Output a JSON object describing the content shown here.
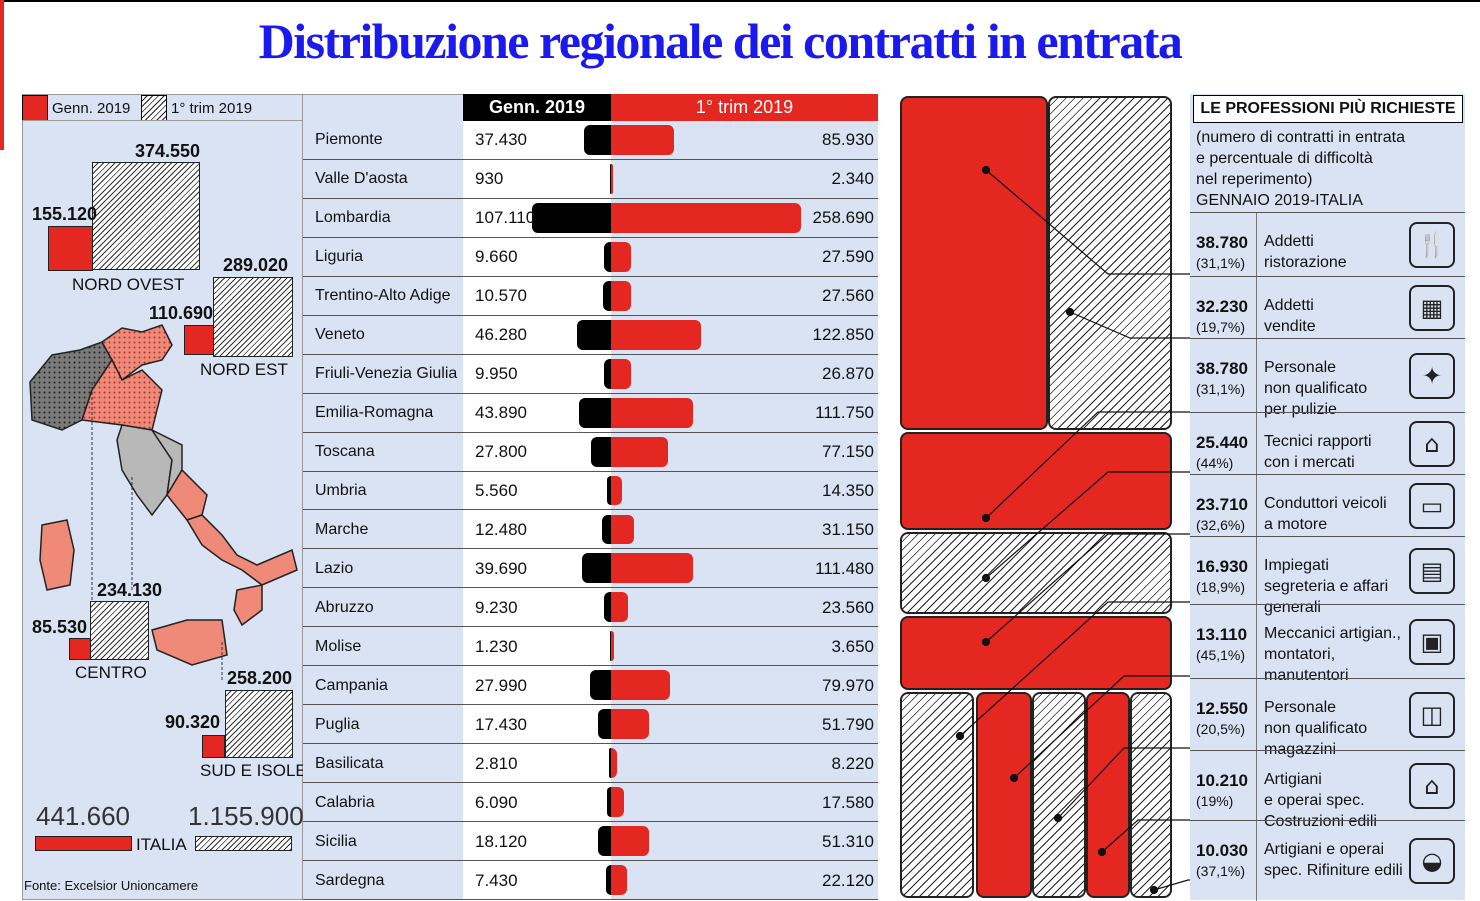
{
  "title": "Distribuzione regionale dei contratti in entrata",
  "legend": {
    "genn": "Genn. 2019",
    "trim": "1° trim 2019"
  },
  "macro_areas": [
    {
      "name": "NORD OVEST",
      "genn": "155.120",
      "trim": "374.550"
    },
    {
      "name": "NORD EST",
      "genn": "110.690",
      "trim": "289.020"
    },
    {
      "name": "CENTRO",
      "genn": "85.530",
      "trim": "234.130"
    },
    {
      "name": "SUD E ISOLE",
      "genn": "90.320",
      "trim": "258.200"
    }
  ],
  "italia": {
    "label": "ITALIA",
    "genn": "441.660",
    "trim": "1.155.900"
  },
  "source": "Fonte: Excelsior Unioncamere",
  "table": {
    "col_genn": "Genn. 2019",
    "col_trim": "1° trim 2019"
  },
  "chart_data": {
    "type": "bar",
    "title": "Distribuzione regionale dei contratti in entrata",
    "categories": [
      "Piemonte",
      "Valle D'aosta",
      "Lombardia",
      "Liguria",
      "Trentino-Alto Adige",
      "Veneto",
      "Friuli-Venezia Giulia",
      "Emilia-Romagna",
      "Toscana",
      "Umbria",
      "Marche",
      "Lazio",
      "Abruzzo",
      "Molise",
      "Campania",
      "Puglia",
      "Basilicata",
      "Calabria",
      "Sicilia",
      "Sardegna"
    ],
    "series": [
      {
        "name": "Genn. 2019",
        "values": [
          37430,
          930,
          107110,
          9660,
          10570,
          46280,
          9950,
          43890,
          27800,
          5560,
          12480,
          39690,
          9230,
          1230,
          27990,
          17430,
          2810,
          6090,
          18120,
          7430
        ],
        "labels": [
          "37.430",
          "930",
          "107.110",
          "9.660",
          "10.570",
          "46.280",
          "9.950",
          "43.890",
          "27.800",
          "5.560",
          "12.480",
          "39.690",
          "9.230",
          "1.230",
          "27.990",
          "17.430",
          "2.810",
          "6.090",
          "18.120",
          "7.430"
        ],
        "color": "#000000"
      },
      {
        "name": "1° trim 2019",
        "values": [
          85930,
          2340,
          258690,
          27590,
          27560,
          122850,
          26870,
          111750,
          77150,
          14350,
          31150,
          111480,
          23560,
          3650,
          79970,
          51790,
          8220,
          17580,
          51310,
          22120
        ],
        "labels": [
          "85.930",
          "2.340",
          "258.690",
          "27.590",
          "27.560",
          "122.850",
          "26.870",
          "111.750",
          "77.150",
          "14.350",
          "31.150",
          "111.480",
          "23.560",
          "3.650",
          "79.970",
          "51.790",
          "8.220",
          "17.580",
          "51.310",
          "22.120"
        ],
        "color": "#e52722"
      }
    ]
  },
  "professions": {
    "title": "LE PROFESSIONI PIÙ RICHIESTE",
    "subtitle_lines": [
      "(numero di contratti in entrata",
      "e percentuale di difficoltà",
      "nel reperimento)",
      "GENNAIO 2019-ITALIA"
    ],
    "items": [
      {
        "value": "38.780",
        "perc": "(31,1%)",
        "label_lines": [
          "Addetti",
          "ristorazione"
        ],
        "icon": "dining-icon"
      },
      {
        "value": "32.230",
        "perc": "(19,7%)",
        "label_lines": [
          "Addetti",
          "vendite"
        ],
        "icon": "cash-register-icon"
      },
      {
        "value": "38.780",
        "perc": "(31,1%)",
        "label_lines": [
          "Personale",
          "non qualificato",
          "per pulizie"
        ],
        "icon": "broom-icon"
      },
      {
        "value": "25.440",
        "perc": "(44%)",
        "label_lines": [
          "Tecnici rapporti",
          "con i mercati"
        ],
        "icon": "bank-icon"
      },
      {
        "value": "23.710",
        "perc": "(32,6%)",
        "label_lines": [
          "Conduttori veicoli",
          "a motore"
        ],
        "icon": "bus-icon"
      },
      {
        "value": "16.930",
        "perc": "(18,9%)",
        "label_lines": [
          "Impiegati",
          "segreteria e affari",
          "generali"
        ],
        "icon": "document-icon"
      },
      {
        "value": "13.110",
        "perc": "(45,1%)",
        "label_lines": [
          "Meccanici artigian.,",
          "montatori,",
          "manutentori"
        ],
        "icon": "machine-icon"
      },
      {
        "value": "12.550",
        "perc": "(20,5%)",
        "label_lines": [
          "Personale",
          "non qualificato",
          "magazzini"
        ],
        "icon": "box-icon"
      },
      {
        "value": "10.210",
        "perc": "(19%)",
        "label_lines": [
          "Artigiani",
          "e operai spec.",
          "Costruzioni edili"
        ],
        "icon": "house-icon"
      },
      {
        "value": "10.030",
        "perc": "(37,1%)",
        "label_lines": [
          "Artigiani e operai",
          "spec. Rifiniture edili"
        ],
        "icon": "helmet-icon"
      }
    ]
  }
}
